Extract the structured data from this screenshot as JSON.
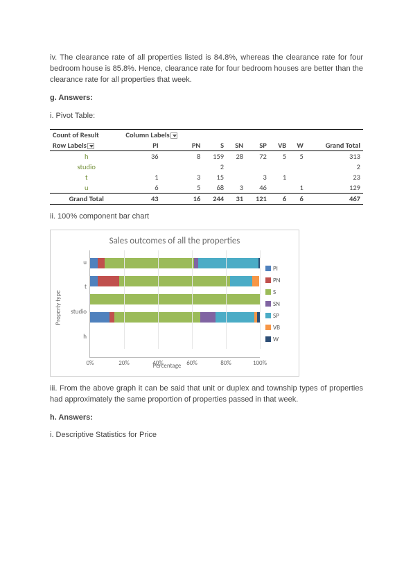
{
  "para_iv": "iv. The clearance rate of all properties listed is 84.8%, whereas the clearance rate for four bedroom house is 85.8%. Hence, clearance rate for four bedroom houses are better than the clearance rate for all properties that week.",
  "g_head": "g. Answers:",
  "g_i": "i. Pivot Table:",
  "pivot": {
    "corner1": "Count of Result",
    "corner2": "Column Labels",
    "row_label": "Row Labels",
    "cols": [
      "PI",
      "PN",
      "S",
      "SN",
      "SP",
      "VB",
      "W",
      "Grand Total"
    ],
    "rows": [
      {
        "label": "h",
        "vals": [
          "36",
          "8",
          "159",
          "28",
          "72",
          "5",
          "5",
          "313"
        ]
      },
      {
        "label": "studio",
        "vals": [
          "",
          "",
          "2",
          "",
          "",
          "",
          "",
          "2"
        ]
      },
      {
        "label": "t",
        "vals": [
          "1",
          "3",
          "15",
          "",
          "3",
          "1",
          "",
          "23"
        ]
      },
      {
        "label": "u",
        "vals": [
          "6",
          "5",
          "68",
          "3",
          "46",
          "",
          "1",
          "129"
        ]
      }
    ],
    "total_label": "Grand Total",
    "totals": [
      "43",
      "16",
      "244",
      "31",
      "121",
      "6",
      "6",
      "467"
    ]
  },
  "g_ii": "ii. 100% component bar chart",
  "chart": {
    "title": "Sales outcomes of all the properties",
    "ylabel": "Property type",
    "xlabel": "Percentage",
    "xticks": [
      "0%",
      "20%",
      "40%",
      "60%",
      "80%",
      "100%"
    ],
    "colors": {
      "PI": "#4f81bd",
      "PN": "#c0504d",
      "S": "#9bbb59",
      "SN": "#8064a2",
      "SP": "#4bacc6",
      "VB": "#f79646",
      "W": "#2c4d75"
    },
    "legend": [
      "PI",
      "PN",
      "S",
      "SN",
      "SP",
      "VB",
      "W"
    ],
    "categories": [
      "u",
      "t",
      "studio",
      "h"
    ],
    "series_pct": {
      "u": {
        "PI": 4.7,
        "PN": 3.9,
        "S": 52.7,
        "SN": 2.3,
        "SP": 35.7,
        "VB": 0.0,
        "W": 0.8
      },
      "t": {
        "PI": 4.3,
        "PN": 13.0,
        "S": 65.2,
        "SN": 0.0,
        "SP": 13.0,
        "VB": 4.3,
        "W": 0.0
      },
      "studio": {
        "PI": 0.0,
        "PN": 0.0,
        "S": 100.0,
        "SN": 0.0,
        "SP": 0.0,
        "VB": 0.0,
        "W": 0.0
      },
      "h": {
        "PI": 11.5,
        "PN": 2.6,
        "S": 50.8,
        "SN": 8.9,
        "SP": 23.0,
        "VB": 1.6,
        "W": 1.6
      }
    }
  },
  "g_iii": "iii. From the above graph it can be said that unit or duplex and township types of properties had approximately the same proportion of properties passed in that week.",
  "h_head": "h. Answers:",
  "h_i": "i. Descriptive Statistics for Price"
}
